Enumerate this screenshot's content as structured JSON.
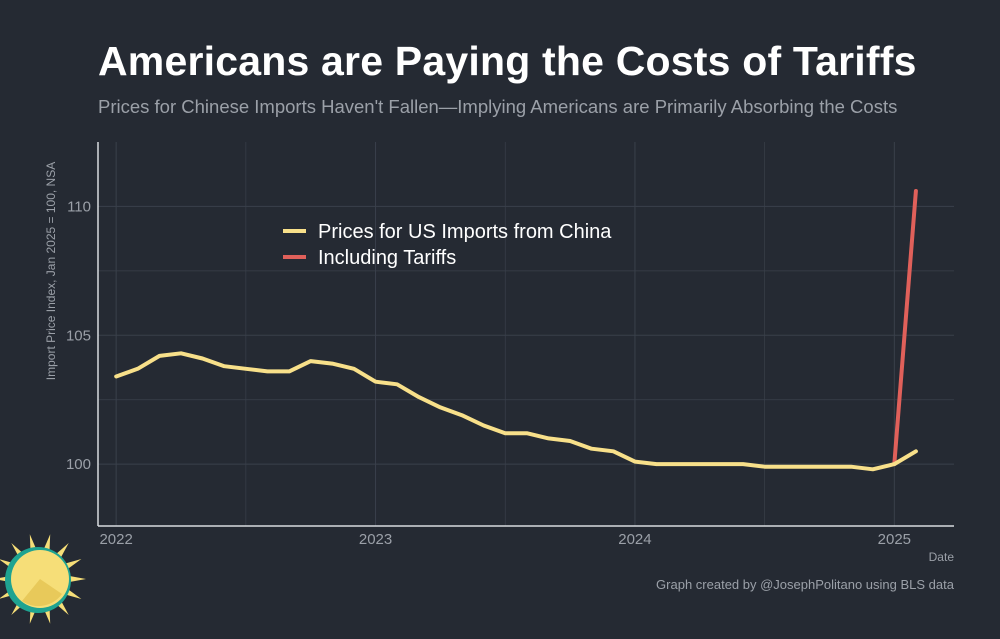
{
  "title": "Americans are Paying the Costs of Tariffs",
  "subtitle": "Prices for Chinese Imports Haven't Fallen—Implying Americans are Primarily Absorbing the Costs",
  "credit": "Graph created by @JosephPolitano using BLS data",
  "colors": {
    "background": "#252a33",
    "grid": "#3a404b",
    "axis": "#d8dbe0",
    "tick_text": "#9ba0a8",
    "china": "#f8e08a",
    "tariff": "#e0605a",
    "logo_sun": "#f6de78",
    "logo_ring": "#1fa391"
  },
  "chart_data": {
    "type": "line",
    "title": "Americans are Paying the Costs of Tariffs",
    "xlabel": "Date",
    "ylabel": "Import Price Index, Jan 2025 = 100, NSA",
    "xlim": [
      2021.93,
      2025.23
    ],
    "ylim": [
      97.6,
      112.5
    ],
    "x_ticks": [
      {
        "value": 2022,
        "label": "2022"
      },
      {
        "value": 2023,
        "label": "2023"
      },
      {
        "value": 2024,
        "label": "2024"
      },
      {
        "value": 2025,
        "label": "2025"
      }
    ],
    "x_minor_ticks": [
      2022.5,
      2023.5,
      2024.5
    ],
    "y_ticks": [
      {
        "value": 100,
        "label": "100"
      },
      {
        "value": 105,
        "label": "105"
      },
      {
        "value": 110,
        "label": "110"
      }
    ],
    "y_minor_ticks": [
      102.5,
      107.5
    ],
    "legend_position": "top-left",
    "series": [
      {
        "name": "Prices for US Imports from China",
        "color": "#f8e08a",
        "x": [
          2022.0,
          2022.083,
          2022.167,
          2022.25,
          2022.333,
          2022.417,
          2022.5,
          2022.583,
          2022.667,
          2022.75,
          2022.833,
          2022.917,
          2023.0,
          2023.083,
          2023.167,
          2023.25,
          2023.333,
          2023.417,
          2023.5,
          2023.583,
          2023.667,
          2023.75,
          2023.833,
          2023.917,
          2024.0,
          2024.083,
          2024.167,
          2024.25,
          2024.333,
          2024.417,
          2024.5,
          2024.583,
          2024.667,
          2024.75,
          2024.833,
          2024.917,
          2025.0,
          2025.083
        ],
        "values": [
          103.4,
          103.7,
          104.2,
          104.3,
          104.1,
          103.8,
          103.7,
          103.6,
          103.6,
          104.0,
          103.9,
          103.7,
          103.2,
          103.1,
          102.6,
          102.2,
          101.9,
          101.5,
          101.2,
          101.2,
          101.0,
          100.9,
          100.6,
          100.5,
          100.1,
          100.0,
          100.0,
          100.0,
          100.0,
          100.0,
          99.9,
          99.9,
          99.9,
          99.9,
          99.9,
          99.8,
          100.0,
          100.5
        ]
      },
      {
        "name": "Including Tariffs",
        "color": "#e0605a",
        "x": [
          2025.0,
          2025.083
        ],
        "values": [
          100.0,
          110.6
        ]
      }
    ]
  }
}
